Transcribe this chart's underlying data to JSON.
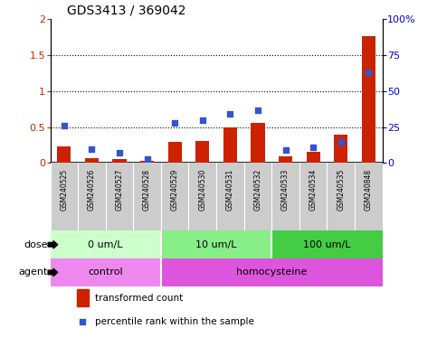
{
  "title": "GDS3413 / 369042",
  "samples": [
    "GSM240525",
    "GSM240526",
    "GSM240527",
    "GSM240528",
    "GSM240529",
    "GSM240530",
    "GSM240531",
    "GSM240532",
    "GSM240533",
    "GSM240534",
    "GSM240535",
    "GSM240848"
  ],
  "transformed_count": [
    0.23,
    0.07,
    0.05,
    0.03,
    0.3,
    0.31,
    0.49,
    0.56,
    0.1,
    0.16,
    0.4,
    1.76
  ],
  "percentile_rank": [
    26,
    10,
    7,
    3,
    28,
    30,
    34,
    37,
    9,
    11,
    15,
    63
  ],
  "bar_color": "#cc2200",
  "dot_color": "#3355cc",
  "ylim_left": [
    0,
    2
  ],
  "ylim_right": [
    0,
    100
  ],
  "yticks_left": [
    0,
    0.5,
    1.0,
    1.5,
    2.0
  ],
  "ytick_labels_left": [
    "0",
    "0.5",
    "1",
    "1.5",
    "2"
  ],
  "yticks_right": [
    0,
    25,
    50,
    75,
    100
  ],
  "ytick_labels_right": [
    "0",
    "25",
    "50",
    "75",
    "100%"
  ],
  "hlines": [
    0.5,
    1.0,
    1.5
  ],
  "dose_groups": [
    {
      "label": "0 um/L",
      "start": 0,
      "end": 4,
      "color": "#ccffcc"
    },
    {
      "label": "10 um/L",
      "start": 4,
      "end": 8,
      "color": "#88ee88"
    },
    {
      "label": "100 um/L",
      "start": 8,
      "end": 12,
      "color": "#44cc44"
    }
  ],
  "agent_groups": [
    {
      "label": "control",
      "start": 0,
      "end": 4,
      "color": "#ee88ee"
    },
    {
      "label": "homocysteine",
      "start": 4,
      "end": 12,
      "color": "#dd55dd"
    }
  ],
  "legend_bar_label": "transformed count",
  "legend_dot_label": "percentile rank within the sample",
  "label_dose": "dose",
  "label_agent": "agent",
  "bar_width": 0.5,
  "dot_size": 20
}
